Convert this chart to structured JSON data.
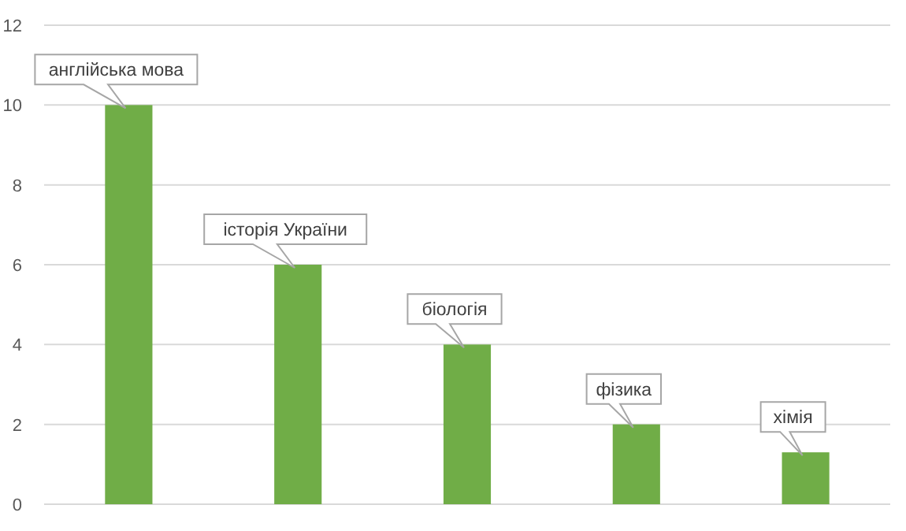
{
  "chart_data": {
    "type": "bar",
    "categories": [
      "англійська мова",
      "історія України",
      "біологія",
      "фізика",
      "хімія"
    ],
    "values": [
      10,
      6,
      4,
      2,
      1.3
    ],
    "color": "#70ad47",
    "ylim": [
      0,
      12
    ],
    "yticks": [
      0,
      2,
      4,
      6,
      8,
      10,
      12
    ],
    "grid": "y"
  }
}
